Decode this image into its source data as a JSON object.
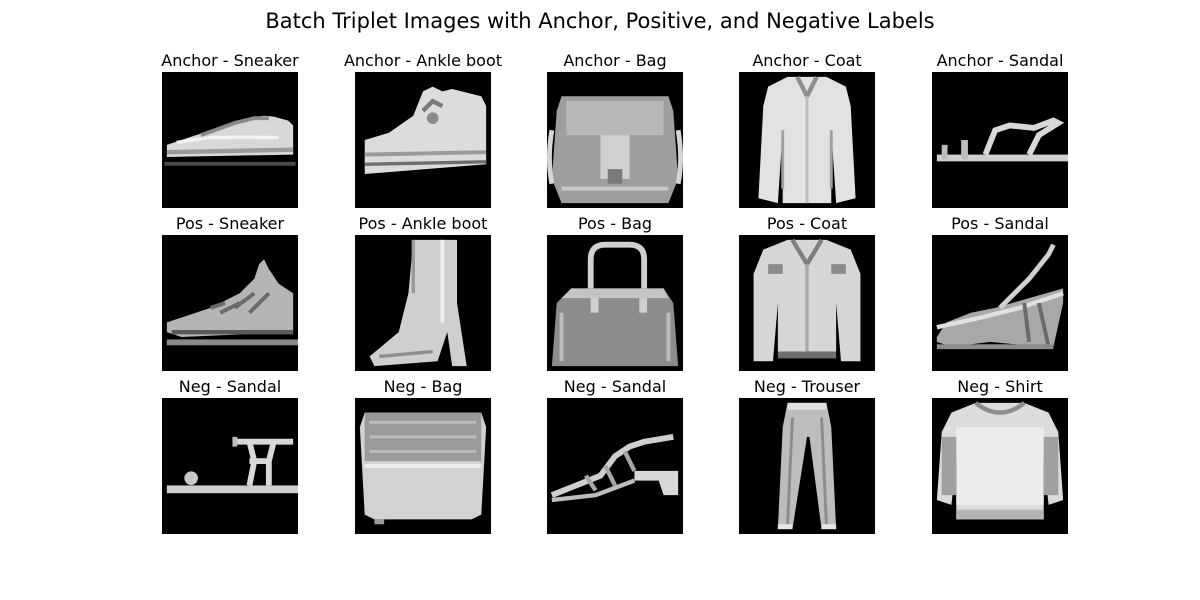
{
  "title": "Batch Triplet Images with Anchor, Positive, and Negative Labels",
  "rows": [
    {
      "panels": [
        {
          "label": "Anchor - Sneaker",
          "item": "sneaker"
        },
        {
          "label": "Anchor - Ankle boot",
          "item": "ankle-boot-high-top"
        },
        {
          "label": "Anchor - Bag",
          "item": "bag-satchel"
        },
        {
          "label": "Anchor - Coat",
          "item": "coat"
        },
        {
          "label": "Anchor - Sandal",
          "item": "sandal-flat"
        }
      ]
    },
    {
      "panels": [
        {
          "label": "Pos - Sneaker",
          "item": "sneaker-angled"
        },
        {
          "label": "Pos - Ankle boot",
          "item": "ankle-boot-heeled"
        },
        {
          "label": "Pos - Bag",
          "item": "bag-handbag"
        },
        {
          "label": "Pos - Coat",
          "item": "coat-jacket"
        },
        {
          "label": "Pos - Sandal",
          "item": "sandal-wedge"
        }
      ]
    },
    {
      "panels": [
        {
          "label": "Neg - Sandal",
          "item": "sandal-strappy"
        },
        {
          "label": "Neg - Bag",
          "item": "bag-box"
        },
        {
          "label": "Neg - Sandal",
          "item": "sandal-heeled"
        },
        {
          "label": "Neg - Trouser",
          "item": "trouser"
        },
        {
          "label": "Neg - Shirt",
          "item": "shirt"
        }
      ]
    }
  ]
}
